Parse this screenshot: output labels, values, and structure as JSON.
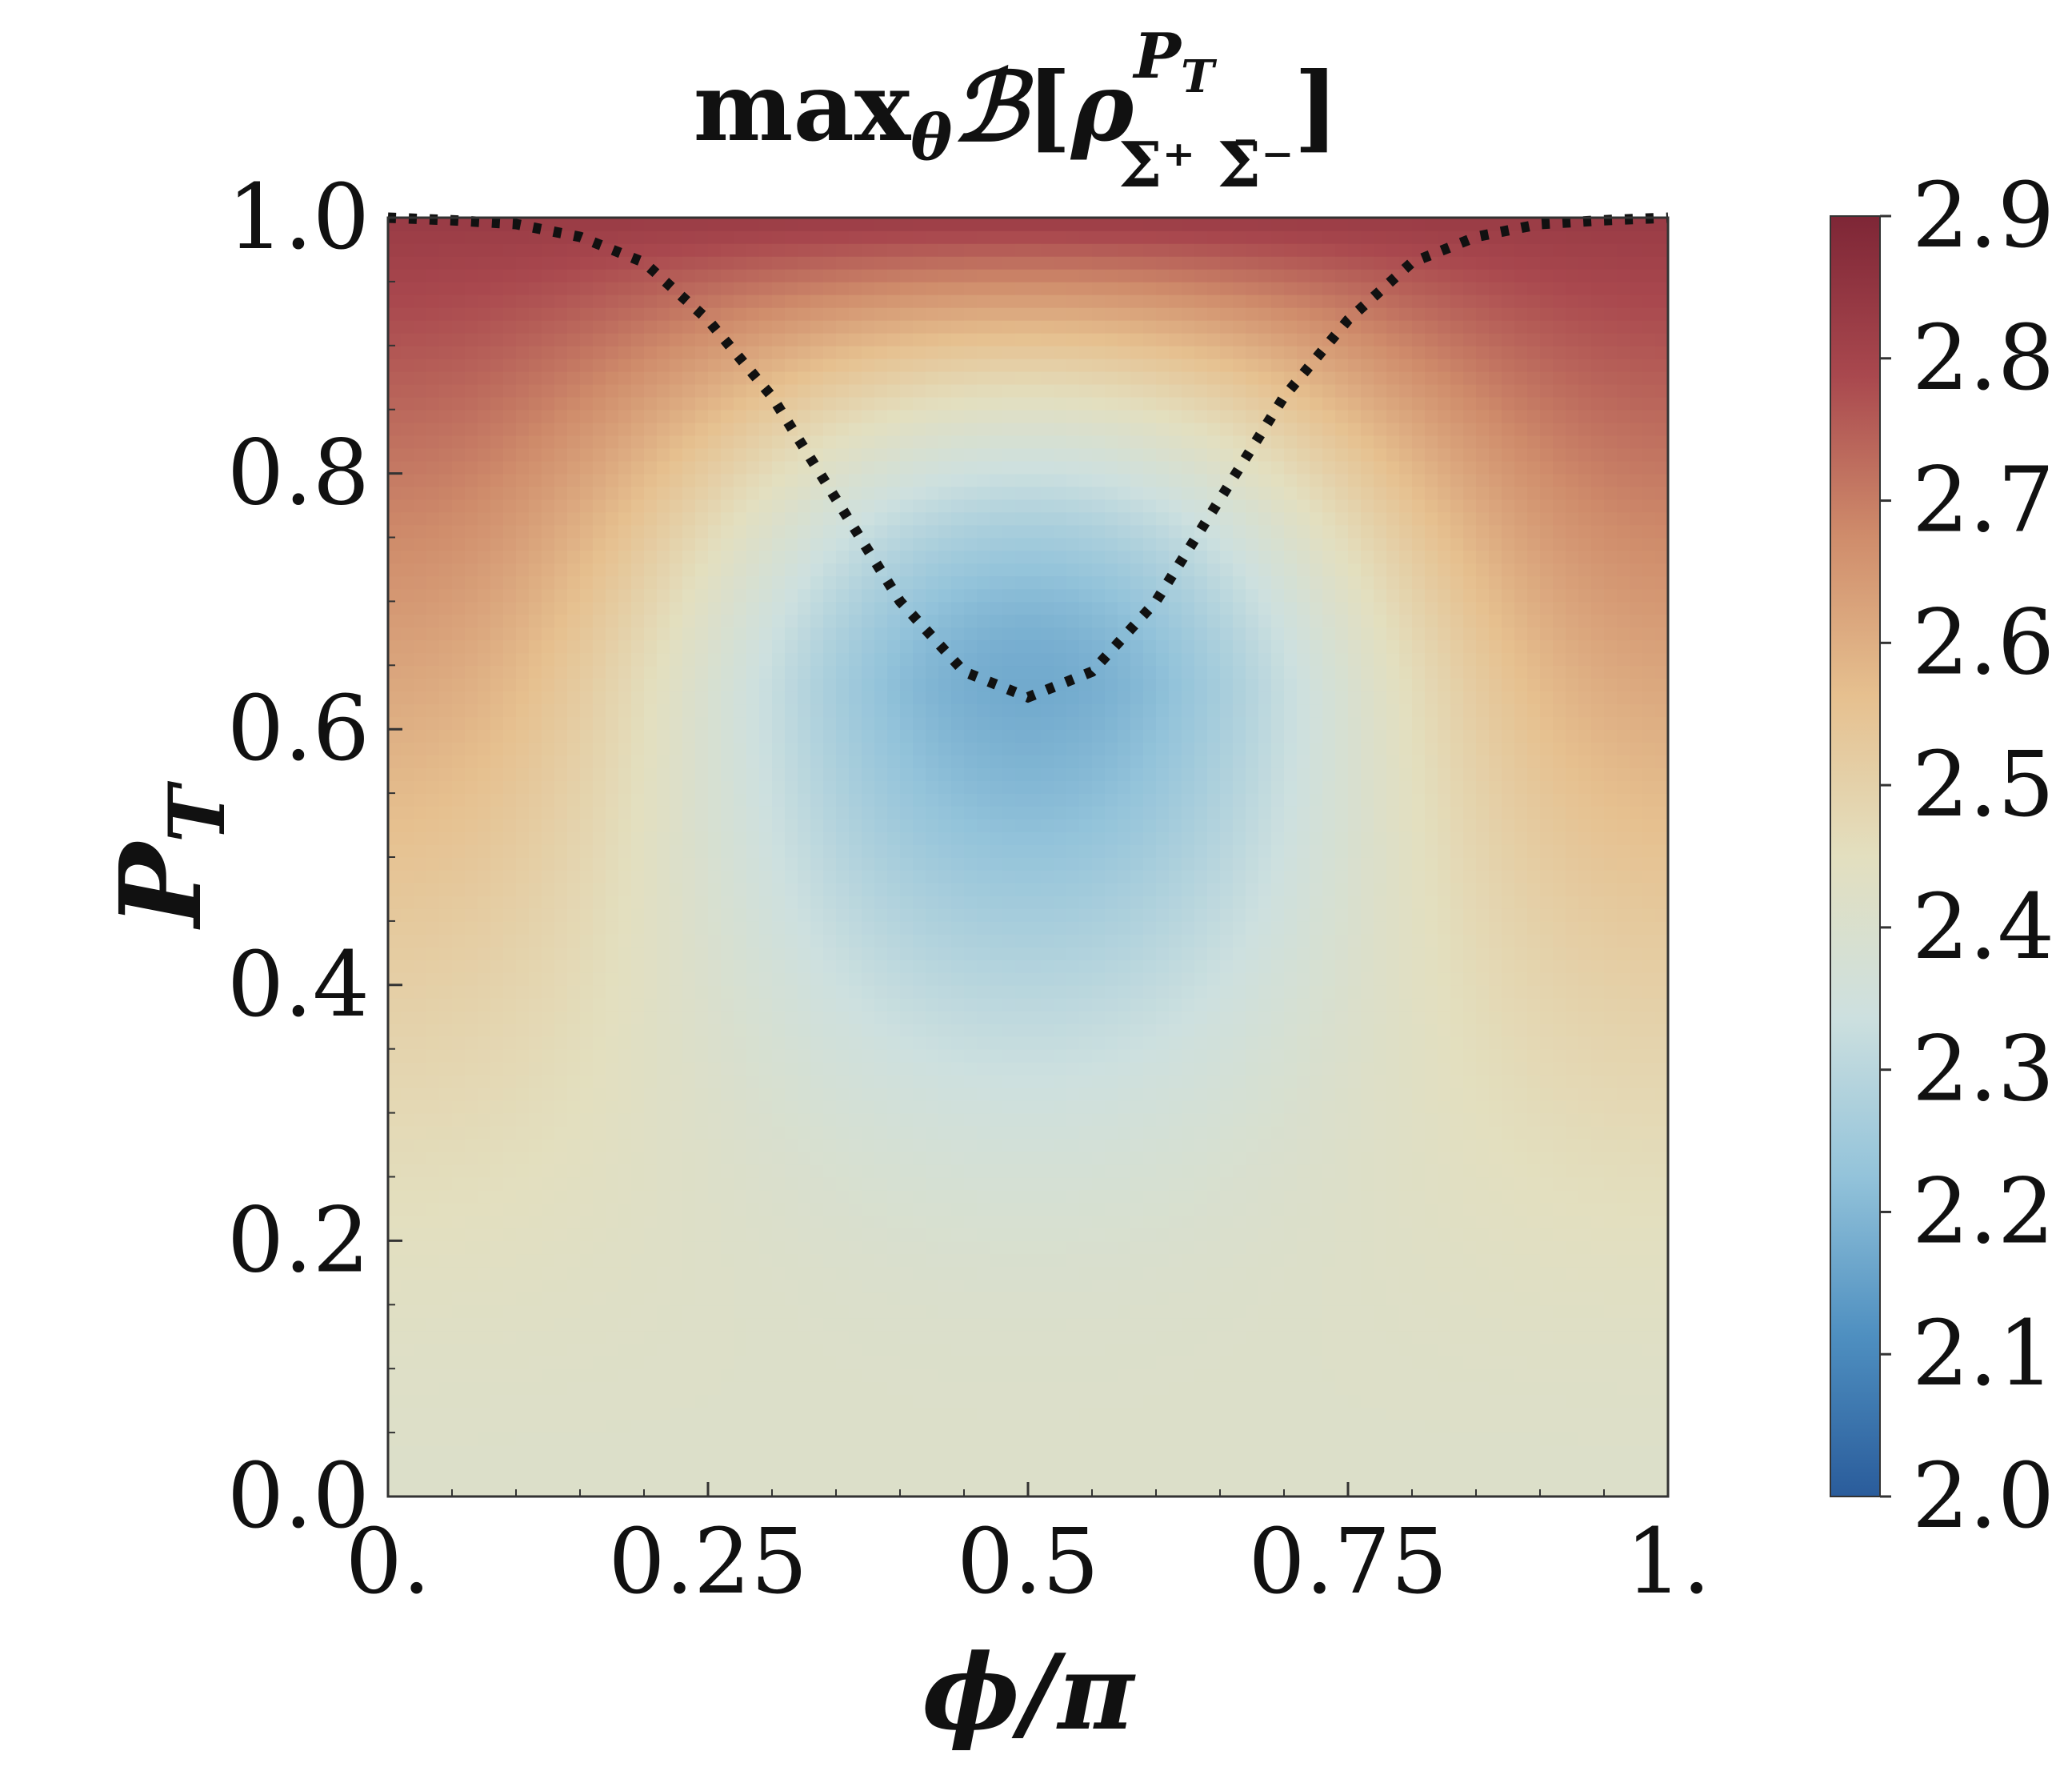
{
  "chart_data": {
    "type": "heatmap",
    "title": {
      "prefix": "max",
      "sub": "θ",
      "script": "ℬ",
      "bracket_open": "[",
      "rho": "ρ",
      "sup": "P",
      "sup_sub": "T",
      "lower": "Σ⁺ Σ̄⁻",
      "bracket_close": "]"
    },
    "xlabel": "ϕ/π",
    "ylabel": {
      "main": "P",
      "sub": "T"
    },
    "xlim": [
      0,
      1
    ],
    "ylim": [
      0,
      1
    ],
    "x_ticks": [
      {
        "value": 0,
        "label": "0."
      },
      {
        "value": 0.25,
        "label": "0.25"
      },
      {
        "value": 0.5,
        "label": "0.5"
      },
      {
        "value": 0.75,
        "label": "0.75"
      },
      {
        "value": 1,
        "label": "1."
      }
    ],
    "y_ticks": [
      {
        "value": 0,
        "label": "0.0"
      },
      {
        "value": 0.2,
        "label": "0.2"
      },
      {
        "value": 0.4,
        "label": "0.4"
      },
      {
        "value": 0.6,
        "label": "0.6"
      },
      {
        "value": 0.8,
        "label": "0.8"
      },
      {
        "value": 1,
        "label": "1.0"
      }
    ],
    "colorbar": {
      "range": [
        2.0,
        2.9
      ],
      "ticks": [
        {
          "value": 2.0,
          "label": "2.0"
        },
        {
          "value": 2.1,
          "label": "2.1"
        },
        {
          "value": 2.2,
          "label": "2.2"
        },
        {
          "value": 2.3,
          "label": "2.3"
        },
        {
          "value": 2.4,
          "label": "2.4"
        },
        {
          "value": 2.5,
          "label": "2.5"
        },
        {
          "value": 2.6,
          "label": "2.6"
        },
        {
          "value": 2.7,
          "label": "2.7"
        },
        {
          "value": 2.8,
          "label": "2.8"
        },
        {
          "value": 2.9,
          "label": "2.9"
        }
      ],
      "colormap": [
        "#2a5c9b",
        "#4e8fc0",
        "#93c3da",
        "#cde0df",
        "#e3dfbf",
        "#e6c08f",
        "#cf8c6b",
        "#a9484e",
        "#7e2636"
      ]
    },
    "field": {
      "value_at_phi_0_P0": 2.414,
      "value_at_phi_0_P1": 2.83,
      "value_at_phi_0.5_P0.63": 2.17,
      "value_at_phi_0.5_P1": 2.83
    },
    "dotted_boundary": {
      "x": [
        0,
        0.05,
        0.1,
        0.15,
        0.2,
        0.25,
        0.3,
        0.35,
        0.4,
        0.45,
        0.5,
        0.55,
        0.6,
        0.65,
        0.7,
        0.75,
        0.8,
        0.85,
        0.9,
        0.95,
        1
      ],
      "y": [
        1.0,
        0.998,
        0.995,
        0.985,
        0.965,
        0.92,
        0.86,
        0.78,
        0.7,
        0.645,
        0.625,
        0.645,
        0.7,
        0.78,
        0.86,
        0.92,
        0.965,
        0.985,
        0.995,
        0.998,
        1.0
      ]
    }
  }
}
